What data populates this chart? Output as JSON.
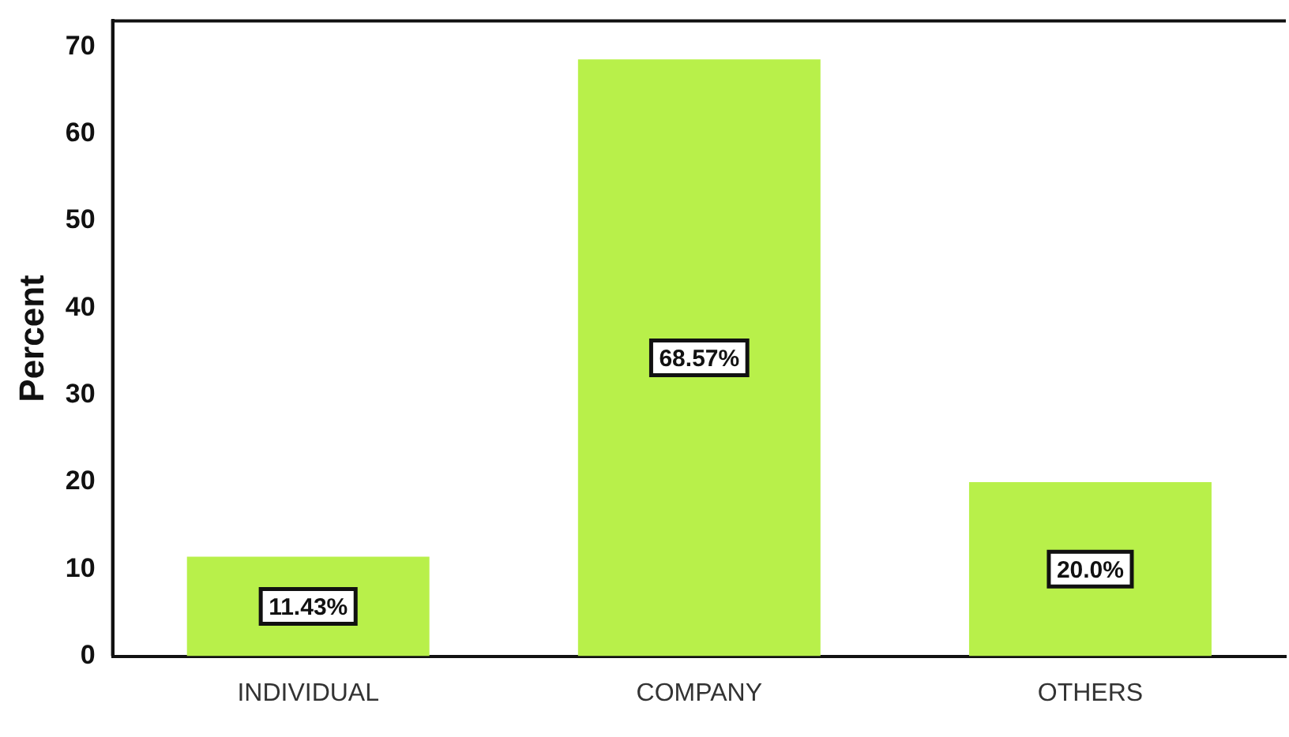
{
  "chart_data": {
    "type": "bar",
    "ylabel": "Percent",
    "categories": [
      "INDIVIDUAL",
      "COMPANY",
      "OTHERS"
    ],
    "values": [
      11.43,
      68.57,
      20.0
    ],
    "value_labels": [
      "11.43%",
      "68.57%",
      "20.0%"
    ],
    "color": "#b8f04a",
    "ylim": [
      0,
      73
    ],
    "yticks": [
      0,
      10,
      20,
      30,
      40,
      50,
      60,
      70
    ],
    "grid": false,
    "legend": false
  }
}
